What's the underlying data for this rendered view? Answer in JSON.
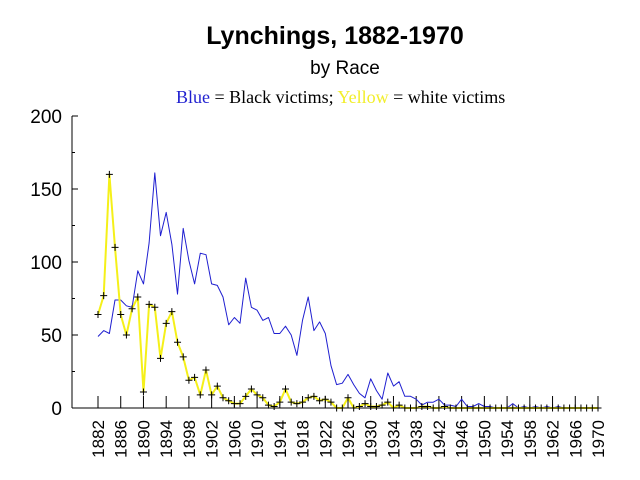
{
  "chart_data": {
    "type": "line",
    "title": "Lynchings, 1882-1970",
    "subtitle": "by Race",
    "legend": {
      "black_word": "Blue",
      "black_text": " = Black  victims; ",
      "white_word": "Yellow",
      "white_text": " = white victims"
    },
    "ylim": [
      0,
      200
    ],
    "yticks": [
      0,
      50,
      100,
      150,
      200
    ],
    "xlim": [
      1882,
      1970
    ],
    "xticks": [
      1882,
      1886,
      1890,
      1894,
      1898,
      1902,
      1906,
      1910,
      1914,
      1918,
      1922,
      1926,
      1930,
      1934,
      1938,
      1942,
      1946,
      1950,
      1954,
      1958,
      1962,
      1966,
      1970
    ],
    "grid": false,
    "series": [
      {
        "name": "Black victims",
        "color": "#1f1fd0",
        "x": [
          1882,
          1883,
          1884,
          1885,
          1886,
          1887,
          1888,
          1889,
          1890,
          1891,
          1892,
          1893,
          1894,
          1895,
          1896,
          1897,
          1898,
          1899,
          1900,
          1901,
          1902,
          1903,
          1904,
          1905,
          1906,
          1907,
          1908,
          1909,
          1910,
          1911,
          1912,
          1913,
          1914,
          1915,
          1916,
          1917,
          1918,
          1919,
          1920,
          1921,
          1922,
          1923,
          1924,
          1925,
          1926,
          1927,
          1928,
          1929,
          1930,
          1931,
          1932,
          1933,
          1934,
          1935,
          1936,
          1937,
          1938,
          1939,
          1940,
          1941,
          1942,
          1943,
          1944,
          1945,
          1946,
          1947,
          1948,
          1949,
          1950,
          1951,
          1952,
          1953,
          1954,
          1955,
          1956,
          1957,
          1958,
          1959,
          1960,
          1961,
          1962,
          1963,
          1964,
          1965,
          1966,
          1967,
          1968,
          1969,
          1970
        ],
        "values": [
          49,
          53,
          51,
          74,
          74,
          70,
          69,
          94,
          85,
          113,
          161,
          118,
          134,
          112,
          78,
          123,
          101,
          85,
          106,
          105,
          85,
          84,
          76,
          57,
          62,
          58,
          89,
          69,
          67,
          60,
          62,
          51,
          51,
          56,
          50,
          36,
          60,
          76,
          53,
          59,
          51,
          29,
          16,
          17,
          23,
          16,
          10,
          7,
          20,
          12,
          6,
          24,
          15,
          18,
          8,
          8,
          6,
          2,
          4,
          4,
          6,
          2,
          2,
          1,
          6,
          1,
          1,
          3,
          1,
          1,
          0,
          0,
          0,
          3,
          0,
          1,
          0,
          1,
          0,
          1,
          0,
          1,
          0,
          0,
          0,
          0,
          0,
          0,
          0
        ]
      },
      {
        "name": "white victims",
        "color": "#f5f019",
        "x": [
          1882,
          1883,
          1884,
          1885,
          1886,
          1887,
          1888,
          1889,
          1890,
          1891,
          1892,
          1893,
          1894,
          1895,
          1896,
          1897,
          1898,
          1899,
          1900,
          1901,
          1902,
          1903,
          1904,
          1905,
          1906,
          1907,
          1908,
          1909,
          1910,
          1911,
          1912,
          1913,
          1914,
          1915,
          1916,
          1917,
          1918,
          1919,
          1920,
          1921,
          1922,
          1923,
          1924,
          1925,
          1926,
          1927,
          1928,
          1929,
          1930,
          1931,
          1932,
          1933,
          1934,
          1935,
          1936,
          1937,
          1938,
          1939,
          1940,
          1941,
          1942,
          1943,
          1944,
          1945,
          1946,
          1947,
          1948,
          1949,
          1950,
          1951,
          1952,
          1953,
          1954,
          1955,
          1956,
          1957,
          1958,
          1959,
          1960,
          1961,
          1962,
          1963,
          1964,
          1965,
          1966,
          1967,
          1968,
          1969,
          1970
        ],
        "values": [
          64,
          77,
          160,
          110,
          64,
          50,
          68,
          76,
          11,
          71,
          69,
          34,
          58,
          66,
          45,
          35,
          19,
          21,
          9,
          26,
          9,
          15,
          7,
          5,
          3,
          3,
          8,
          13,
          9,
          7,
          2,
          1,
          4,
          13,
          4,
          3,
          4,
          7,
          8,
          5,
          6,
          4,
          0,
          0,
          7,
          0,
          1,
          3,
          1,
          1,
          2,
          4,
          0,
          2,
          0,
          0,
          0,
          1,
          1,
          0,
          0,
          1,
          0,
          0,
          0,
          0,
          0,
          0,
          0,
          0,
          0,
          0,
          0,
          0,
          0,
          0,
          0,
          0,
          0,
          0,
          0,
          0,
          0,
          0,
          0,
          0,
          0,
          0,
          0
        ]
      }
    ]
  }
}
